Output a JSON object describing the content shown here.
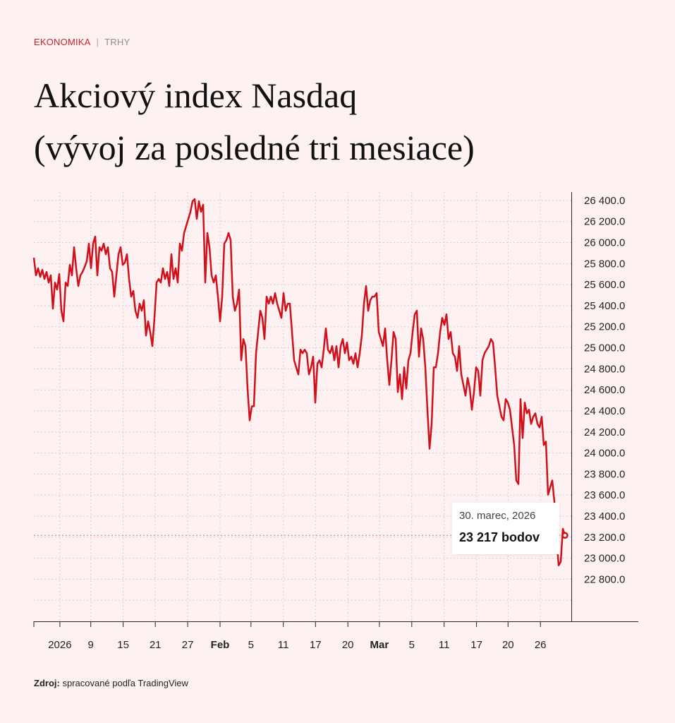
{
  "breadcrumb": {
    "section": "EKONOMIKA",
    "separator": "|",
    "subsection": "TRHY"
  },
  "title_line1": "Akciový index Nasdaq",
  "title_line2": "(vývoj za posledné tri mesiace)",
  "tooltip": {
    "date": "30. marec, 2026",
    "value": "23 217 bodov"
  },
  "source": {
    "label": "Zdroj:",
    "text": "spracované podľa TradingView"
  },
  "colors": {
    "line": "#d0101b",
    "background": "#fdf1f1",
    "accent": "#c0262d"
  },
  "chart_data": {
    "type": "line",
    "title": "Akciový index Nasdaq (vývoj za posledné tri mesiace)",
    "xlabel": "",
    "ylabel": "",
    "ylim": [
      22400,
      26480
    ],
    "y_ticks": [
      22800,
      23000,
      23200,
      23400,
      23600,
      23800,
      24000,
      24200,
      24400,
      24600,
      24800,
      25000,
      25200,
      25400,
      25600,
      25800,
      26000,
      26200,
      26400
    ],
    "y_tick_labels": [
      "22 800.0",
      "23 000.0",
      "23 200.0",
      "23 400.0",
      "23 600.0",
      "23 800.0",
      "24 000.0",
      "24 200.0",
      "24 400.0",
      "24 600.0",
      "24 800.0",
      "25 000.0",
      "25 200.0",
      "25 400.0",
      "25 600.0",
      "25 800.0",
      "26 000.0",
      "26 200.0",
      "26 400.0"
    ],
    "x_ticks": [
      {
        "label": "2026",
        "x": 12.3,
        "bold": false
      },
      {
        "label": "9",
        "x": 26.9,
        "bold": false
      },
      {
        "label": "15",
        "x": 42.2,
        "bold": false
      },
      {
        "label": "21",
        "x": 57.4,
        "bold": false
      },
      {
        "label": "27",
        "x": 72.7,
        "bold": false
      },
      {
        "label": "Feb",
        "x": 88.0,
        "bold": true
      },
      {
        "label": "5",
        "x": 102.6,
        "bold": false
      },
      {
        "label": "11",
        "x": 117.9,
        "bold": false
      },
      {
        "label": "17",
        "x": 133.1,
        "bold": false
      },
      {
        "label": "20",
        "x": 148.4,
        "bold": false
      },
      {
        "label": "Mar",
        "x": 163.3,
        "bold": true
      },
      {
        "label": "5",
        "x": 178.6,
        "bold": false
      },
      {
        "label": "11",
        "x": 193.9,
        "bold": false
      },
      {
        "label": "17",
        "x": 209.2,
        "bold": false
      },
      {
        "label": "20",
        "x": 224.1,
        "bold": false
      },
      {
        "label": "26",
        "x": 239.4,
        "bold": false
      }
    ],
    "highlight": {
      "label": "30. marec, 2026",
      "value": 23217
    },
    "series": [
      {
        "name": "Nasdaq",
        "values": [
          25856,
          25688,
          25755,
          25674,
          25741,
          25654,
          25721,
          25620,
          25688,
          25372,
          25620,
          25553,
          25701,
          25352,
          25251,
          25620,
          25587,
          25788,
          25688,
          25956,
          25755,
          25587,
          25688,
          25721,
          25768,
          25822,
          25990,
          25755,
          25990,
          26057,
          25688,
          25956,
          25923,
          25990,
          25889,
          25956,
          25755,
          25721,
          25486,
          25688,
          25889,
          25956,
          25788,
          25809,
          25889,
          25654,
          25486,
          25540,
          25352,
          25284,
          25419,
          25352,
          25452,
          25116,
          25251,
          25150,
          25016,
          25284,
          25620,
          25654,
          25620,
          25755,
          25654,
          25721,
          25587,
          25889,
          25654,
          25755,
          25620,
          25990,
          25923,
          26091,
          26158,
          26225,
          26292,
          26393,
          26413,
          26225,
          26393,
          26292,
          26360,
          25620,
          26091,
          25956,
          25688,
          25620,
          25688,
          25486,
          25251,
          25486,
          25990,
          26024,
          26091,
          26024,
          25486,
          25352,
          25419,
          25553,
          24881,
          25083,
          25016,
          24612,
          24310,
          24444,
          24444,
          24948,
          25150,
          25352,
          25284,
          25083,
          25486,
          25419,
          25486,
          25419,
          25520,
          25419,
          25352,
          25284,
          25520,
          25352,
          25419,
          25419,
          25150,
          24881,
          24814,
          24747,
          24982,
          24948,
          24982,
          24948,
          24747,
          24814,
          24915,
          24478,
          24848,
          24881,
          24814,
          24982,
          25184,
          24982,
          24948,
          25016,
          24881,
          25016,
          24814,
          25016,
          25083,
          24948,
          25049,
          24881,
          24915,
          24848,
          24948,
          24814,
          24948,
          25116,
          25419,
          25587,
          25352,
          25452,
          25486,
          25486,
          25520,
          25150,
          25083,
          25016,
          25184,
          24881,
          24646,
          24881,
          25150,
          25083,
          24579,
          24747,
          24512,
          24814,
          24612,
          24881,
          24948,
          25150,
          25318,
          25352,
          24915,
          25184,
          25083,
          24814,
          24411,
          24041,
          24276,
          24814,
          24814,
          24948,
          25150,
          25284,
          25217,
          25318,
          25083,
          25150,
          24948,
          24915,
          24780,
          25016,
          24747,
          24646,
          24545,
          24713,
          24612,
          24411,
          24579,
          24814,
          24780,
          24545,
          24881,
          24948,
          24982,
          25016,
          25083,
          25049,
          24814,
          24545,
          24444,
          24344,
          24310,
          24512,
          24478,
          24411,
          24243,
          24075,
          23739,
          23705,
          24512,
          24142,
          24478,
          24377,
          24411,
          24276,
          24344,
          24377,
          24276,
          24243,
          24344,
          24075,
          24108,
          23604,
          23672,
          23739,
          23537,
          23201,
          22932,
          22966,
          23280,
          23217
        ]
      }
    ]
  }
}
